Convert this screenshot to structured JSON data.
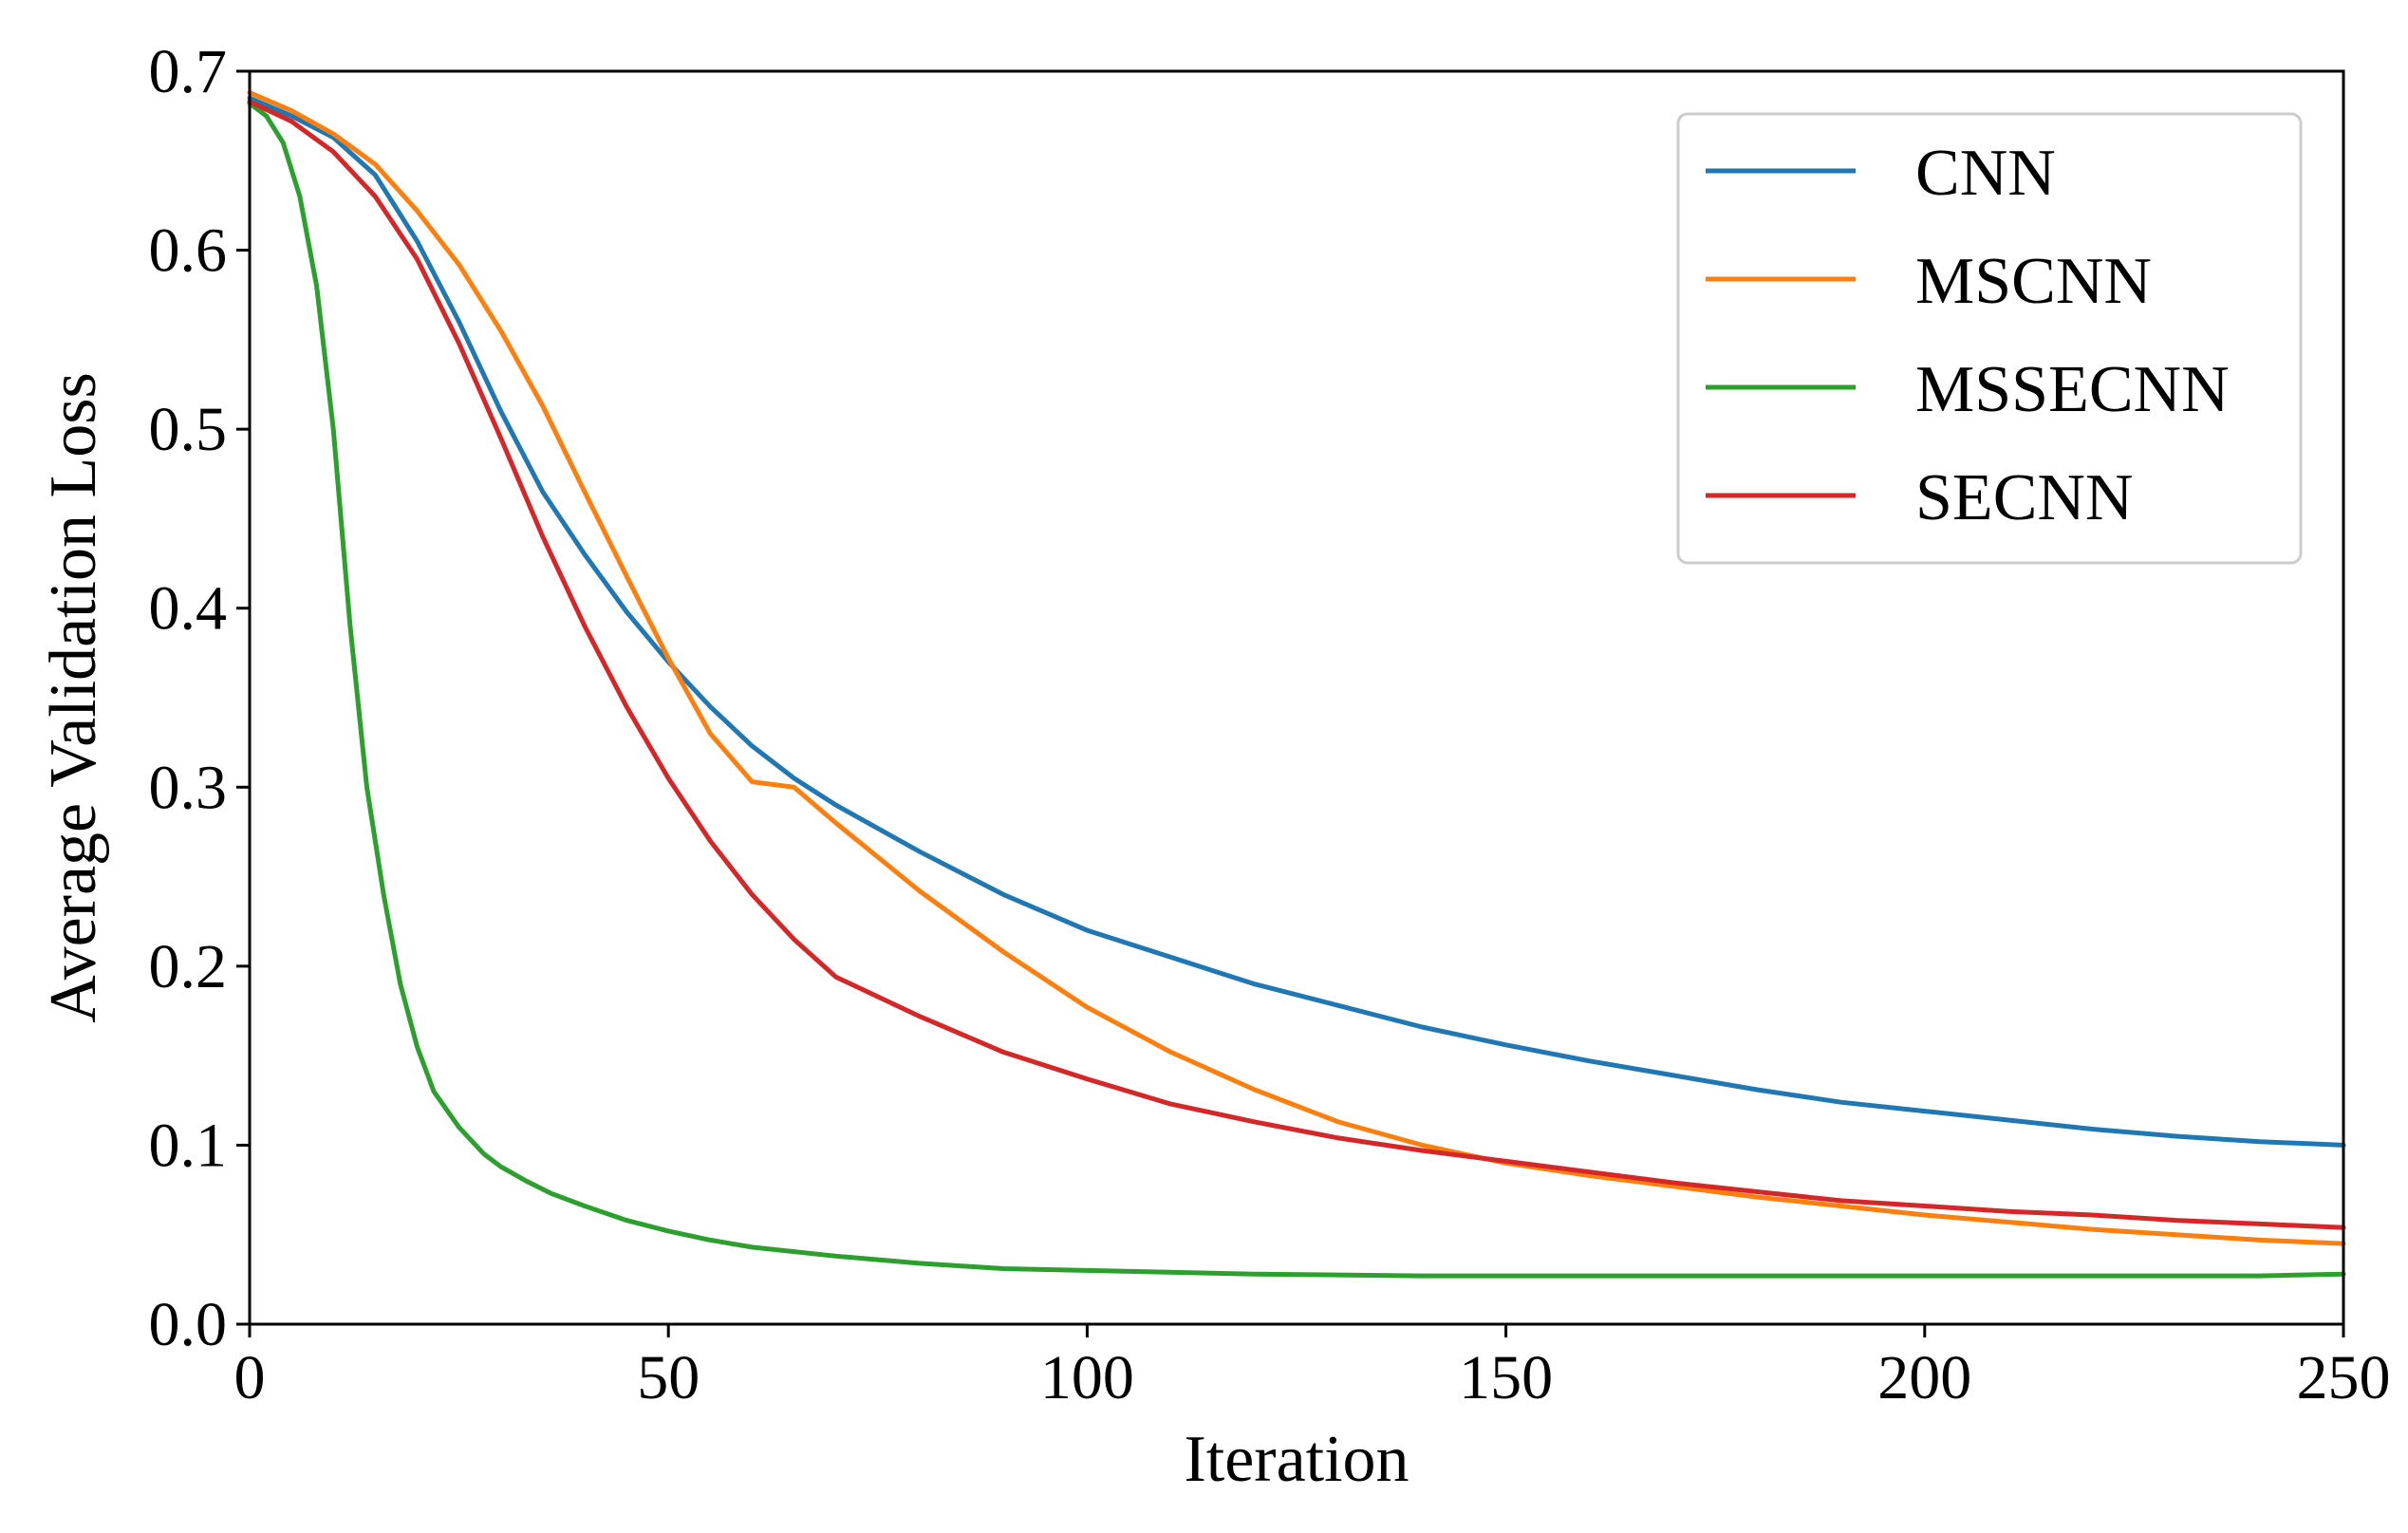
{
  "chart_data": {
    "type": "line",
    "title": "",
    "xlabel": "Iteration",
    "ylabel": "Average Validation Loss",
    "xlim": [
      0,
      250
    ],
    "ylim": [
      0.0,
      0.7
    ],
    "xticks": [
      "0",
      "50",
      "100",
      "150",
      "200",
      "250"
    ],
    "yticks": [
      "0.0",
      "0.1",
      "0.2",
      "0.3",
      "0.4",
      "0.5",
      "0.6",
      "0.7"
    ],
    "grid": false,
    "legend_position": "top-right",
    "series": [
      {
        "name": "CNN",
        "color": "#1f77b4",
        "x": [
          0,
          5,
          10,
          15,
          20,
          25,
          30,
          35,
          40,
          45,
          50,
          55,
          60,
          65,
          70,
          80,
          90,
          100,
          110,
          120,
          130,
          140,
          150,
          160,
          170,
          180,
          190,
          200,
          210,
          220,
          230,
          240,
          250
        ],
        "y": [
          0.685,
          0.675,
          0.663,
          0.642,
          0.605,
          0.56,
          0.51,
          0.465,
          0.43,
          0.398,
          0.37,
          0.345,
          0.323,
          0.305,
          0.29,
          0.264,
          0.24,
          0.22,
          0.205,
          0.19,
          0.178,
          0.166,
          0.156,
          0.147,
          0.139,
          0.131,
          0.124,
          0.119,
          0.114,
          0.109,
          0.105,
          0.102,
          0.1
        ]
      },
      {
        "name": "MSCNN",
        "color": "#ff7f0e",
        "x": [
          0,
          5,
          10,
          15,
          20,
          25,
          30,
          35,
          40,
          45,
          50,
          55,
          60,
          65,
          70,
          80,
          90,
          100,
          110,
          120,
          130,
          140,
          150,
          160,
          170,
          180,
          190,
          200,
          210,
          220,
          230,
          240,
          250
        ],
        "y": [
          0.688,
          0.678,
          0.665,
          0.648,
          0.622,
          0.592,
          0.555,
          0.513,
          0.465,
          0.418,
          0.372,
          0.33,
          0.303,
          0.3,
          0.28,
          0.242,
          0.208,
          0.177,
          0.152,
          0.131,
          0.113,
          0.1,
          0.09,
          0.083,
          0.077,
          0.071,
          0.066,
          0.061,
          0.057,
          0.053,
          0.05,
          0.047,
          0.045
        ]
      },
      {
        "name": "MSSECNN",
        "color": "#2ca02c",
        "x": [
          0,
          2,
          4,
          6,
          8,
          10,
          12,
          14,
          16,
          18,
          20,
          22,
          25,
          28,
          30,
          33,
          36,
          40,
          45,
          50,
          55,
          60,
          70,
          80,
          90,
          100,
          120,
          140,
          160,
          180,
          200,
          220,
          240,
          250
        ],
        "y": [
          0.682,
          0.675,
          0.66,
          0.63,
          0.58,
          0.5,
          0.39,
          0.3,
          0.24,
          0.19,
          0.155,
          0.13,
          0.11,
          0.095,
          0.088,
          0.08,
          0.073,
          0.066,
          0.058,
          0.052,
          0.047,
          0.043,
          0.038,
          0.034,
          0.031,
          0.03,
          0.028,
          0.027,
          0.027,
          0.027,
          0.027,
          0.027,
          0.027,
          0.028
        ]
      },
      {
        "name": "SECNN",
        "color": "#d62728",
        "x": [
          0,
          5,
          10,
          15,
          20,
          25,
          30,
          35,
          40,
          45,
          50,
          55,
          60,
          65,
          70,
          80,
          90,
          100,
          110,
          120,
          130,
          140,
          150,
          160,
          170,
          180,
          190,
          200,
          210,
          220,
          230,
          240,
          250
        ],
        "y": [
          0.683,
          0.672,
          0.655,
          0.63,
          0.595,
          0.548,
          0.495,
          0.44,
          0.39,
          0.345,
          0.305,
          0.27,
          0.24,
          0.215,
          0.194,
          0.172,
          0.152,
          0.137,
          0.123,
          0.113,
          0.104,
          0.097,
          0.091,
          0.085,
          0.079,
          0.074,
          0.069,
          0.066,
          0.063,
          0.061,
          0.058,
          0.056,
          0.054
        ]
      }
    ]
  }
}
